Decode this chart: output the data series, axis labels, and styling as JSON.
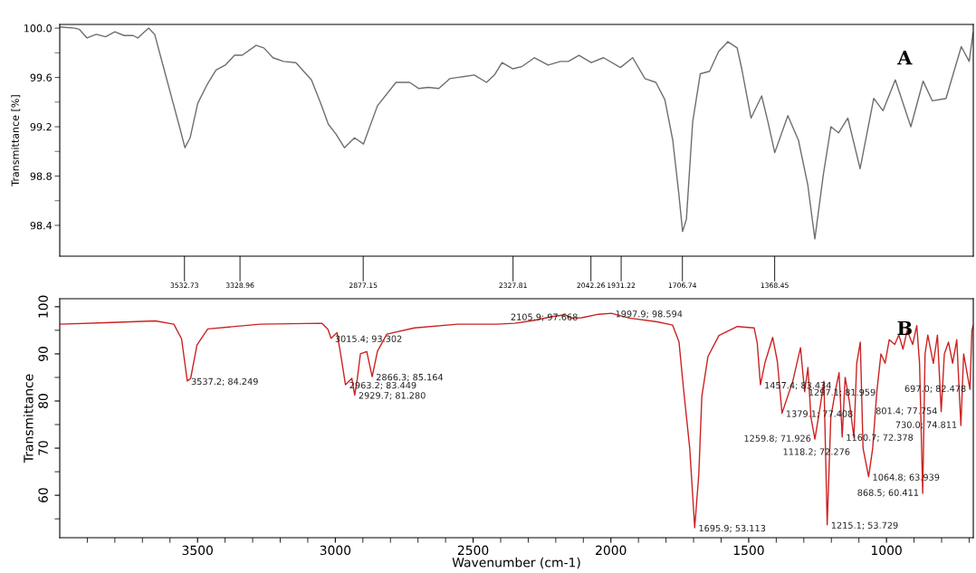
{
  "chart_data": [
    {
      "type": "line",
      "ylabel": "Transmittance [%]",
      "xlim": [
        3990,
        640
      ],
      "ylim": [
        98.15,
        100.03
      ],
      "xticks": [
        3532.73,
        3328.96,
        2877.15,
        2327.81,
        2042.26,
        1931.22,
        1706.74,
        1368.45
      ],
      "yticks": [
        {
          "value": 100,
          "label": "100.0"
        },
        {
          "value": 99.8,
          "label": null
        },
        99.6,
        {
          "value": 99.4,
          "label": null
        },
        99.2,
        {
          "value": 99.0,
          "label": null
        },
        98.8,
        {
          "value": 98.6,
          "label": null
        },
        98.4
      ],
      "grid": false,
      "annotations": [
        "A"
      ],
      "series": [
        {
          "color": "#6e6e6e",
          "x": [
            3990,
            3935,
            3918,
            3890,
            3856,
            3822,
            3788,
            3754,
            3721,
            3704,
            3664,
            3642,
            3608,
            3574,
            3546,
            3531,
            3512,
            3484,
            3450,
            3417,
            3383,
            3349,
            3321,
            3270,
            3242,
            3208,
            3169,
            3124,
            3067,
            3033,
            3005,
            2977,
            2946,
            2909,
            2876,
            2825,
            2757,
            2707,
            2673,
            2639,
            2600,
            2560,
            2470,
            2425,
            2396,
            2368,
            2328,
            2294,
            2249,
            2199,
            2154,
            2125,
            2086,
            2041,
            1996,
            1934,
            1889,
            1844,
            1804,
            1771,
            1742,
            1720,
            1706,
            1692,
            1669,
            1641,
            1607,
            1574,
            1540,
            1506,
            1489,
            1455,
            1416,
            1393,
            1368,
            1320,
            1281,
            1247,
            1221,
            1190,
            1162,
            1134,
            1100,
            1055,
            1005,
            971,
            926,
            869,
            824,
            790,
            740,
            684,
            655,
            641
          ],
          "values": [
            100.01,
            100.0,
            99.99,
            99.92,
            99.95,
            99.93,
            99.97,
            99.94,
            99.94,
            99.92,
            100.0,
            99.95,
            99.67,
            99.39,
            99.16,
            99.03,
            99.11,
            99.39,
            99.54,
            99.66,
            99.7,
            99.78,
            99.78,
            99.86,
            99.84,
            99.76,
            99.73,
            99.72,
            99.58,
            99.39,
            99.22,
            99.14,
            99.03,
            99.11,
            99.06,
            99.37,
            99.56,
            99.56,
            99.51,
            99.52,
            99.51,
            99.59,
            99.62,
            99.56,
            99.62,
            99.72,
            99.67,
            99.69,
            99.76,
            99.7,
            99.73,
            99.73,
            99.78,
            99.72,
            99.76,
            99.68,
            99.76,
            99.59,
            99.56,
            99.42,
            99.09,
            98.66,
            98.35,
            98.45,
            99.24,
            99.63,
            99.65,
            99.81,
            99.89,
            99.84,
            99.67,
            99.27,
            99.45,
            99.24,
            98.99,
            99.29,
            99.09,
            98.73,
            98.29,
            98.81,
            99.2,
            99.15,
            99.27,
            98.86,
            99.43,
            99.33,
            99.58,
            99.2,
            99.57,
            99.41,
            99.43,
            99.85,
            99.73,
            99.96
          ]
        }
      ]
    },
    {
      "type": "line",
      "xlabel": "Wavenumber (cm-1)",
      "ylabel": "Transmittance",
      "xlim": [
        4000,
        685
      ],
      "ylim": [
        51,
        101.7
      ],
      "xticks": [
        {
          "value": 3900,
          "label": null
        },
        {
          "value": 3800,
          "label": null
        },
        {
          "value": 3700,
          "label": null
        },
        {
          "value": 3600,
          "label": null
        },
        3500,
        {
          "value": 3400,
          "label": null
        },
        {
          "value": 3300,
          "label": null
        },
        {
          "value": 3200,
          "label": null
        },
        {
          "value": 3100,
          "label": null
        },
        3000,
        {
          "value": 2900,
          "label": null
        },
        {
          "value": 2800,
          "label": null
        },
        {
          "value": 2700,
          "label": null
        },
        {
          "value": 2600,
          "label": null
        },
        2500,
        {
          "value": 2400,
          "label": null
        },
        {
          "value": 2300,
          "label": null
        },
        {
          "value": 2200,
          "label": null
        },
        {
          "value": 2100,
          "label": null
        },
        2000,
        {
          "value": 1900,
          "label": null
        },
        {
          "value": 1800,
          "label": null
        },
        {
          "value": 1700,
          "label": null
        },
        {
          "value": 1600,
          "label": null
        },
        1500,
        {
          "value": 1400,
          "label": null
        },
        {
          "value": 1300,
          "label": null
        },
        {
          "value": 1200,
          "label": null
        },
        {
          "value": 1100,
          "label": null
        },
        1000,
        {
          "value": 900,
          "label": null
        },
        {
          "value": 800,
          "label": null
        },
        {
          "value": 700,
          "label": null
        }
      ],
      "yticks": [
        100,
        {
          "value": 95,
          "label": null
        },
        90,
        {
          "value": 85,
          "label": null
        },
        80,
        {
          "value": 75,
          "label": null
        },
        70,
        {
          "value": 65,
          "label": null
        },
        60,
        {
          "value": 55,
          "label": null
        }
      ],
      "grid": false,
      "annotations": [
        "B",
        {
          "text": "3537.2; 84.249",
          "x": 3537.2,
          "y": 84.249
        },
        {
          "text": "3015.4; 93.302",
          "x": 3015.4,
          "y": 93.302
        },
        {
          "text": "2866.3; 85.164",
          "x": 2866.3,
          "y": 85.164
        },
        {
          "text": "2963.2; 83.449",
          "x": 2963.2,
          "y": 83.449
        },
        {
          "text": "2929.7; 81.280",
          "x": 2929.7,
          "y": 81.28
        },
        {
          "text": "2105.9; 97.668",
          "x": 2105.9,
          "y": 97.668
        },
        {
          "text": "1997.9; 98.594",
          "x": 1997.9,
          "y": 98.594
        },
        {
          "text": "1695.9; 53.113",
          "x": 1695.9,
          "y": 53.113
        },
        {
          "text": "1457.4; 83.434",
          "x": 1457.4,
          "y": 83.434
        },
        {
          "text": "1297.1; 81.959",
          "x": 1297.1,
          "y": 81.959
        },
        {
          "text": "1379.1; 77.408",
          "x": 1379.1,
          "y": 77.408
        },
        {
          "text": "1259.8; 71.926",
          "x": 1259.8,
          "y": 71.926
        },
        {
          "text": "1118.2; 72.276",
          "x": 1118.2,
          "y": 72.276
        },
        {
          "text": "1215.1; 53.729",
          "x": 1215.1,
          "y": 53.729
        },
        {
          "text": "1160.7; 72.378",
          "x": 1160.7,
          "y": 72.378
        },
        {
          "text": "1064.8; 63.939",
          "x": 1064.8,
          "y": 63.939
        },
        {
          "text": "868.5; 60.411",
          "x": 868.5,
          "y": 60.411
        },
        {
          "text": "801.4; 77.754",
          "x": 801.4,
          "y": 77.754
        },
        {
          "text": "730.0; 74.811",
          "x": 730.0,
          "y": 74.811
        },
        {
          "text": "697.0; 82.478",
          "x": 697.0,
          "y": 82.478
        }
      ],
      "series": [
        {
          "color": "#cc2222",
          "x": [
            4000,
            3833,
            3653,
            3586,
            3558,
            3537.2,
            3525,
            3502,
            3463,
            3273,
            3049,
            3027,
            3015.4,
            2994,
            2980,
            2963.2,
            2940,
            2929.7,
            2920,
            2909,
            2886,
            2866.3,
            2847,
            2813,
            2713,
            2556,
            2415,
            2348,
            2280,
            2213,
            2166,
            2146,
            2105.9,
            2045,
            1997.9,
            1933,
            1832,
            1776,
            1753,
            1736,
            1714,
            1695.9,
            1681,
            1670,
            1648,
            1608,
            1541,
            1480,
            1469,
            1457.4,
            1441,
            1413,
            1396,
            1379.1,
            1340,
            1312,
            1297.1,
            1285,
            1274,
            1259.8,
            1240,
            1227,
            1215.1,
            1202,
            1185,
            1172,
            1160.7,
            1150,
            1135,
            1118.2,
            1108,
            1095,
            1085,
            1064.8,
            1050,
            1035,
            1020,
            1005,
            990,
            970,
            955,
            940,
            925,
            905,
            890,
            880,
            868.5,
            860,
            850,
            830,
            815,
            801.4,
            790,
            775,
            760,
            745,
            730.0,
            720,
            697.0,
            690,
            685
          ],
          "values": [
            96.3,
            96.6,
            97.0,
            96.3,
            93.2,
            84.249,
            84.8,
            91.9,
            95.3,
            96.3,
            96.5,
            95.2,
            93.302,
            94.5,
            89.7,
            83.449,
            84.8,
            81.28,
            84.8,
            90.0,
            90.5,
            85.164,
            90.6,
            94.2,
            95.5,
            96.3,
            96.3,
            96.5,
            97.1,
            97.9,
            98.3,
            97.6,
            97.668,
            98.4,
            98.594,
            97.6,
            96.8,
            96.1,
            92.6,
            82.3,
            70.0,
            53.113,
            64.5,
            81.0,
            89.4,
            93.9,
            95.8,
            95.5,
            92.3,
            83.434,
            88.1,
            93.5,
            88.4,
            77.408,
            84.2,
            91.3,
            81.959,
            87.1,
            76.5,
            71.926,
            79.0,
            84.2,
            53.729,
            76.5,
            82.3,
            86.0,
            72.378,
            85.0,
            80.0,
            72.276,
            88.0,
            92.5,
            70.0,
            63.939,
            70.0,
            82.0,
            90.0,
            88.0,
            93.0,
            92.0,
            94.0,
            91.0,
            95.0,
            92.0,
            96.0,
            88.0,
            60.411,
            90.0,
            94.0,
            88.0,
            94.0,
            77.754,
            90.0,
            92.5,
            88.0,
            93.0,
            74.811,
            90.0,
            82.478,
            95.0,
            96.0
          ]
        }
      ]
    }
  ]
}
